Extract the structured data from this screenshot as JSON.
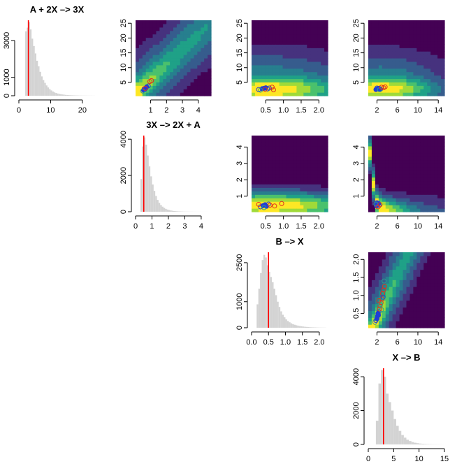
{
  "colors": {
    "histogram_bar": "#d3d3d3",
    "true_value_line": "#ff0000",
    "marker_blue": "#1f3fd6",
    "marker_red": "#e0301e",
    "marker_teal": "#2a9d8f",
    "density_palette": [
      "#440154",
      "#46327e",
      "#365c8d",
      "#277f8e",
      "#1fa187",
      "#4ac16d",
      "#a0da39",
      "#fde725"
    ]
  },
  "chart_data": [
    {
      "type": "histogram",
      "id": "hist-k1",
      "title": "A + 2X –> 3X",
      "xticks": [
        0,
        10,
        20
      ],
      "xticklabels": [
        "0",
        "10",
        "20"
      ],
      "xlim": [
        0,
        24
      ],
      "yticks": [
        0,
        1000,
        3000
      ],
      "yticklabels": [
        "0",
        "1000",
        "3000"
      ],
      "ylim": [
        0,
        4100
      ],
      "bin_width": 0.5,
      "bins_start": 2,
      "counts": [
        3500,
        3700,
        4000,
        3600,
        3100,
        2700,
        2300,
        1900,
        1600,
        1300,
        1050,
        850,
        700,
        560,
        450,
        360,
        290,
        230,
        180,
        150,
        120,
        100,
        85,
        70,
        58,
        48,
        40,
        34,
        28,
        24,
        20,
        17,
        14,
        12,
        10,
        9,
        8,
        7,
        6,
        5,
        4,
        4,
        3,
        3
      ],
      "true_value": 3
    },
    {
      "type": "histogram",
      "id": "hist-k2",
      "title": "3X –> 2X + A",
      "xticks": [
        0,
        1,
        2,
        3,
        4
      ],
      "xticklabels": [
        "0",
        "1",
        "2",
        "3",
        "4"
      ],
      "xlim": [
        0,
        4.6
      ],
      "yticks": [
        0,
        2000,
        4000
      ],
      "yticklabels": [
        "0",
        "2000",
        "4000"
      ],
      "ylim": [
        0,
        4200
      ],
      "bin_width": 0.1,
      "bins_start": 0.3,
      "counts": [
        1800,
        3600,
        4100,
        3700,
        3100,
        2500,
        1950,
        1500,
        1150,
        870,
        650,
        490,
        370,
        280,
        210,
        160,
        120,
        92,
        70,
        54,
        42,
        33,
        26,
        20,
        16,
        13,
        10,
        8,
        7,
        6,
        5,
        4,
        3,
        3,
        2,
        2,
        2,
        1,
        1,
        1,
        1
      ],
      "true_value": 0.5
    },
    {
      "type": "histogram",
      "id": "hist-k3",
      "title": "B –> X",
      "xticks": [
        0,
        0.5,
        1,
        1.5,
        2
      ],
      "xticklabels": [
        "0.0",
        "0.5",
        "1.0",
        "1.5",
        "2.0"
      ],
      "xlim": [
        0,
        2.25
      ],
      "yticks": [
        0,
        1000,
        2500
      ],
      "yticklabels": [
        "0",
        "1000",
        "2500"
      ],
      "ylim": [
        0,
        2900
      ],
      "bin_width": 0.05,
      "bins_start": 0.15,
      "counts": [
        900,
        1500,
        2100,
        2600,
        2800,
        2700,
        2400,
        2150,
        1950,
        1750,
        1500,
        1250,
        1000,
        800,
        630,
        500,
        400,
        320,
        260,
        210,
        170,
        140,
        115,
        95,
        80,
        66,
        55,
        46,
        38,
        32,
        27,
        22,
        18,
        15,
        12,
        10,
        8,
        7,
        6,
        5,
        4
      ],
      "true_value": 0.5
    },
    {
      "type": "histogram",
      "id": "hist-k4",
      "title": "X –> B",
      "xticks": [
        0,
        5,
        10,
        15
      ],
      "xticklabels": [
        "0",
        "5",
        "10",
        "15"
      ],
      "xlim": [
        0,
        15
      ],
      "yticks": [
        0,
        2000,
        4000
      ],
      "yticklabels": [
        "0",
        "2000",
        "4000"
      ],
      "ylim": [
        0,
        4500
      ],
      "bin_width": 0.5,
      "bins_start": 1.5,
      "counts": [
        1400,
        3600,
        4400,
        4000,
        3000,
        2500,
        2000,
        1500,
        1100,
        800,
        560,
        400,
        280,
        200,
        140,
        100,
        72,
        52,
        38,
        28,
        20,
        15,
        11,
        8,
        6,
        4,
        3
      ],
      "true_value": 3
    },
    {
      "type": "heatmap",
      "id": "pair-k2-k1",
      "xticks": [
        1,
        2,
        3,
        4
      ],
      "xticklabels": [
        "1",
        "2",
        "3",
        "4"
      ],
      "xlim": [
        0.05,
        4.8
      ],
      "yticks": [
        5,
        10,
        15,
        20,
        25
      ],
      "yticklabels": [
        "5",
        "10",
        "15",
        "20",
        "25"
      ],
      "ylim": [
        0.5,
        26
      ],
      "density": {
        "kind": "ridge",
        "slope": 5.0,
        "intercept": 1.2,
        "sd": 2.8,
        "decay": 5.5
      },
      "points": [
        {
          "x": 0.55,
          "y": 2.4,
          "color": "marker_blue",
          "filled": true
        },
        {
          "x": 0.6,
          "y": 2.9,
          "color": "marker_blue",
          "filled": true
        },
        {
          "x": 0.7,
          "y": 3.1,
          "color": "marker_blue",
          "filled": true
        },
        {
          "x": 0.75,
          "y": 3.5,
          "color": "marker_blue",
          "filled": true
        },
        {
          "x": 0.62,
          "y": 2.6,
          "color": "marker_blue",
          "filled": false
        },
        {
          "x": 0.85,
          "y": 3.8,
          "color": "marker_blue",
          "filled": false
        },
        {
          "x": 0.5,
          "y": 2.1,
          "color": "marker_teal",
          "filled": false
        },
        {
          "x": 0.95,
          "y": 5.3,
          "color": "marker_red",
          "filled": false
        },
        {
          "x": 1.05,
          "y": 5.6,
          "color": "marker_red",
          "filled": false
        },
        {
          "x": 0.66,
          "y": 3.0,
          "color": "marker_red",
          "filled": false
        }
      ]
    },
    {
      "type": "heatmap",
      "id": "pair-k3-k1",
      "xticks": [
        0.5,
        1,
        1.5,
        2
      ],
      "xticklabels": [
        "0.5",
        "1.0",
        "1.5",
        "2.0"
      ],
      "xlim": [
        0.1,
        2.25
      ],
      "yticks": [
        5,
        10,
        15,
        20,
        25
      ],
      "yticklabels": [
        "5",
        "10",
        "15",
        "20",
        "25"
      ],
      "ylim": [
        0.5,
        26
      ],
      "density": {
        "kind": "band",
        "center_x": 0.55,
        "center_y": 2.8,
        "sx": 1.2,
        "sy": 2.2,
        "spread": 20
      },
      "points": [
        {
          "x": 0.3,
          "y": 2.6,
          "color": "marker_blue",
          "filled": false
        },
        {
          "x": 0.4,
          "y": 2.9,
          "color": "marker_blue",
          "filled": true
        },
        {
          "x": 0.45,
          "y": 3.0,
          "color": "marker_blue",
          "filled": true
        },
        {
          "x": 0.5,
          "y": 3.2,
          "color": "marker_blue",
          "filled": true
        },
        {
          "x": 0.55,
          "y": 2.8,
          "color": "marker_blue",
          "filled": false
        },
        {
          "x": 0.6,
          "y": 3.1,
          "color": "marker_blue",
          "filled": false
        },
        {
          "x": 0.35,
          "y": 2.4,
          "color": "marker_teal",
          "filled": false
        },
        {
          "x": 0.48,
          "y": 2.7,
          "color": "marker_red",
          "filled": false
        },
        {
          "x": 0.68,
          "y": 3.4,
          "color": "marker_red",
          "filled": false
        },
        {
          "x": 0.72,
          "y": 2.5,
          "color": "marker_red",
          "filled": false
        }
      ]
    },
    {
      "type": "heatmap",
      "id": "pair-k4-k1",
      "xticks": [
        2,
        6,
        10,
        14
      ],
      "xticklabels": [
        "2",
        "6",
        "10",
        "14"
      ],
      "xlim": [
        0.3,
        15.2
      ],
      "yticks": [
        5,
        10,
        15,
        20,
        25
      ],
      "yticklabels": [
        "5",
        "10",
        "15",
        "20",
        "25"
      ],
      "ylim": [
        0.5,
        26
      ],
      "density": {
        "kind": "band",
        "center_x": 2.8,
        "center_y": 3.0,
        "sx": 6.0,
        "sy": 2.0,
        "spread": 22
      },
      "points": [
        {
          "x": 1.8,
          "y": 2.6,
          "color": "marker_blue",
          "filled": true
        },
        {
          "x": 2.1,
          "y": 2.8,
          "color": "marker_blue",
          "filled": true
        },
        {
          "x": 2.4,
          "y": 3.0,
          "color": "marker_blue",
          "filled": true
        },
        {
          "x": 2.7,
          "y": 2.7,
          "color": "marker_blue",
          "filled": true
        },
        {
          "x": 2.0,
          "y": 3.1,
          "color": "marker_blue",
          "filled": false
        },
        {
          "x": 2.5,
          "y": 2.5,
          "color": "marker_teal",
          "filled": false
        },
        {
          "x": 3.3,
          "y": 3.2,
          "color": "marker_red",
          "filled": false
        },
        {
          "x": 3.6,
          "y": 3.5,
          "color": "marker_red",
          "filled": false
        },
        {
          "x": 2.9,
          "y": 3.4,
          "color": "marker_red",
          "filled": false
        }
      ]
    },
    {
      "type": "heatmap",
      "id": "pair-k3-k2",
      "xticks": [
        0.5,
        1,
        1.5,
        2
      ],
      "xticklabels": [
        "0.5",
        "1.0",
        "1.5",
        "2.0"
      ],
      "xlim": [
        0.1,
        2.25
      ],
      "yticks": [
        1,
        2,
        3,
        4
      ],
      "yticklabels": [
        "1",
        "2",
        "3",
        "4"
      ],
      "ylim": [
        0.05,
        4.7
      ],
      "density": {
        "kind": "band",
        "center_x": 0.6,
        "center_y": 0.45,
        "sx": 1.3,
        "sy": 0.4,
        "spread": 4
      },
      "points": [
        {
          "x": 0.35,
          "y": 0.35,
          "color": "marker_blue",
          "filled": false
        },
        {
          "x": 0.42,
          "y": 0.42,
          "color": "marker_blue",
          "filled": true
        },
        {
          "x": 0.48,
          "y": 0.48,
          "color": "marker_blue",
          "filled": true
        },
        {
          "x": 0.52,
          "y": 0.38,
          "color": "marker_blue",
          "filled": true
        },
        {
          "x": 0.58,
          "y": 0.52,
          "color": "marker_blue",
          "filled": false
        },
        {
          "x": 0.45,
          "y": 0.3,
          "color": "marker_teal",
          "filled": false
        },
        {
          "x": 0.62,
          "y": 0.45,
          "color": "marker_red",
          "filled": false
        },
        {
          "x": 0.75,
          "y": 0.4,
          "color": "marker_red",
          "filled": false
        },
        {
          "x": 0.95,
          "y": 0.55,
          "color": "marker_red",
          "filled": false
        },
        {
          "x": 0.3,
          "y": 0.5,
          "color": "marker_red",
          "filled": false
        }
      ]
    },
    {
      "type": "heatmap",
      "id": "pair-k4-k2",
      "xticks": [
        2,
        6,
        10,
        14
      ],
      "xticklabels": [
        "2",
        "6",
        "10",
        "14"
      ],
      "xlim": [
        0.3,
        15.2
      ],
      "yticks": [
        1,
        2,
        3,
        4
      ],
      "yticklabels": [
        "1",
        "2",
        "3",
        "4"
      ],
      "ylim": [
        0.05,
        4.7
      ],
      "density": {
        "kind": "hyperbola",
        "center_x": 2.2,
        "center_y": 0.5,
        "k": 1.0,
        "sd": 0.35,
        "spread": 6
      },
      "points": [
        {
          "x": 1.9,
          "y": 0.4,
          "color": "marker_blue",
          "filled": true
        },
        {
          "x": 2.1,
          "y": 0.5,
          "color": "marker_blue",
          "filled": true
        },
        {
          "x": 2.3,
          "y": 0.55,
          "color": "marker_blue",
          "filled": true
        },
        {
          "x": 2.0,
          "y": 0.6,
          "color": "marker_blue",
          "filled": true
        },
        {
          "x": 2.4,
          "y": 0.42,
          "color": "marker_blue",
          "filled": false
        },
        {
          "x": 1.8,
          "y": 0.52,
          "color": "marker_teal",
          "filled": false
        },
        {
          "x": 2.6,
          "y": 0.48,
          "color": "marker_red",
          "filled": false
        },
        {
          "x": 2.2,
          "y": 0.35,
          "color": "marker_red",
          "filled": false
        }
      ]
    },
    {
      "type": "heatmap",
      "id": "pair-k4-k3",
      "xticks": [
        2,
        6,
        10,
        14
      ],
      "xticklabels": [
        "2",
        "6",
        "10",
        "14"
      ],
      "xlim": [
        0.3,
        15.2
      ],
      "yticks": [
        0.5,
        1,
        1.5,
        2
      ],
      "yticklabels": [
        "0.5",
        "1.0",
        "1.5",
        "2.0"
      ],
      "ylim": [
        0.1,
        2.2
      ],
      "density": {
        "kind": "ridge",
        "slope": 0.3,
        "intercept": -0.25,
        "sd": 0.25,
        "decay": 5.0
      },
      "points": [
        {
          "x": 1.6,
          "y": 0.25,
          "color": "marker_teal",
          "filled": false
        },
        {
          "x": 1.8,
          "y": 0.3,
          "color": "marker_blue",
          "filled": false
        },
        {
          "x": 2.0,
          "y": 0.35,
          "color": "marker_blue",
          "filled": true
        },
        {
          "x": 2.1,
          "y": 0.42,
          "color": "marker_blue",
          "filled": true
        },
        {
          "x": 2.2,
          "y": 0.5,
          "color": "marker_blue",
          "filled": true
        },
        {
          "x": 2.3,
          "y": 0.45,
          "color": "marker_blue",
          "filled": true
        },
        {
          "x": 2.4,
          "y": 0.55,
          "color": "marker_blue",
          "filled": false
        },
        {
          "x": 2.5,
          "y": 0.62,
          "color": "marker_red",
          "filled": false
        },
        {
          "x": 2.6,
          "y": 0.7,
          "color": "marker_red",
          "filled": false
        },
        {
          "x": 2.8,
          "y": 0.8,
          "color": "marker_red",
          "filled": false
        },
        {
          "x": 3.0,
          "y": 0.9,
          "color": "marker_red",
          "filled": false
        },
        {
          "x": 3.1,
          "y": 1.05,
          "color": "marker_red",
          "filled": false
        },
        {
          "x": 3.3,
          "y": 1.15,
          "color": "marker_red",
          "filled": false
        },
        {
          "x": 3.5,
          "y": 1.25,
          "color": "marker_red",
          "filled": false
        },
        {
          "x": 2.7,
          "y": 0.75,
          "color": "marker_teal",
          "filled": false
        },
        {
          "x": 2.9,
          "y": 0.6,
          "color": "marker_teal",
          "filled": false
        },
        {
          "x": 3.2,
          "y": 0.95,
          "color": "marker_blue",
          "filled": false
        },
        {
          "x": 3.4,
          "y": 1.4,
          "color": "marker_teal",
          "filled": false
        },
        {
          "x": 2.35,
          "y": 0.85,
          "color": "marker_red",
          "filled": false
        }
      ]
    }
  ]
}
